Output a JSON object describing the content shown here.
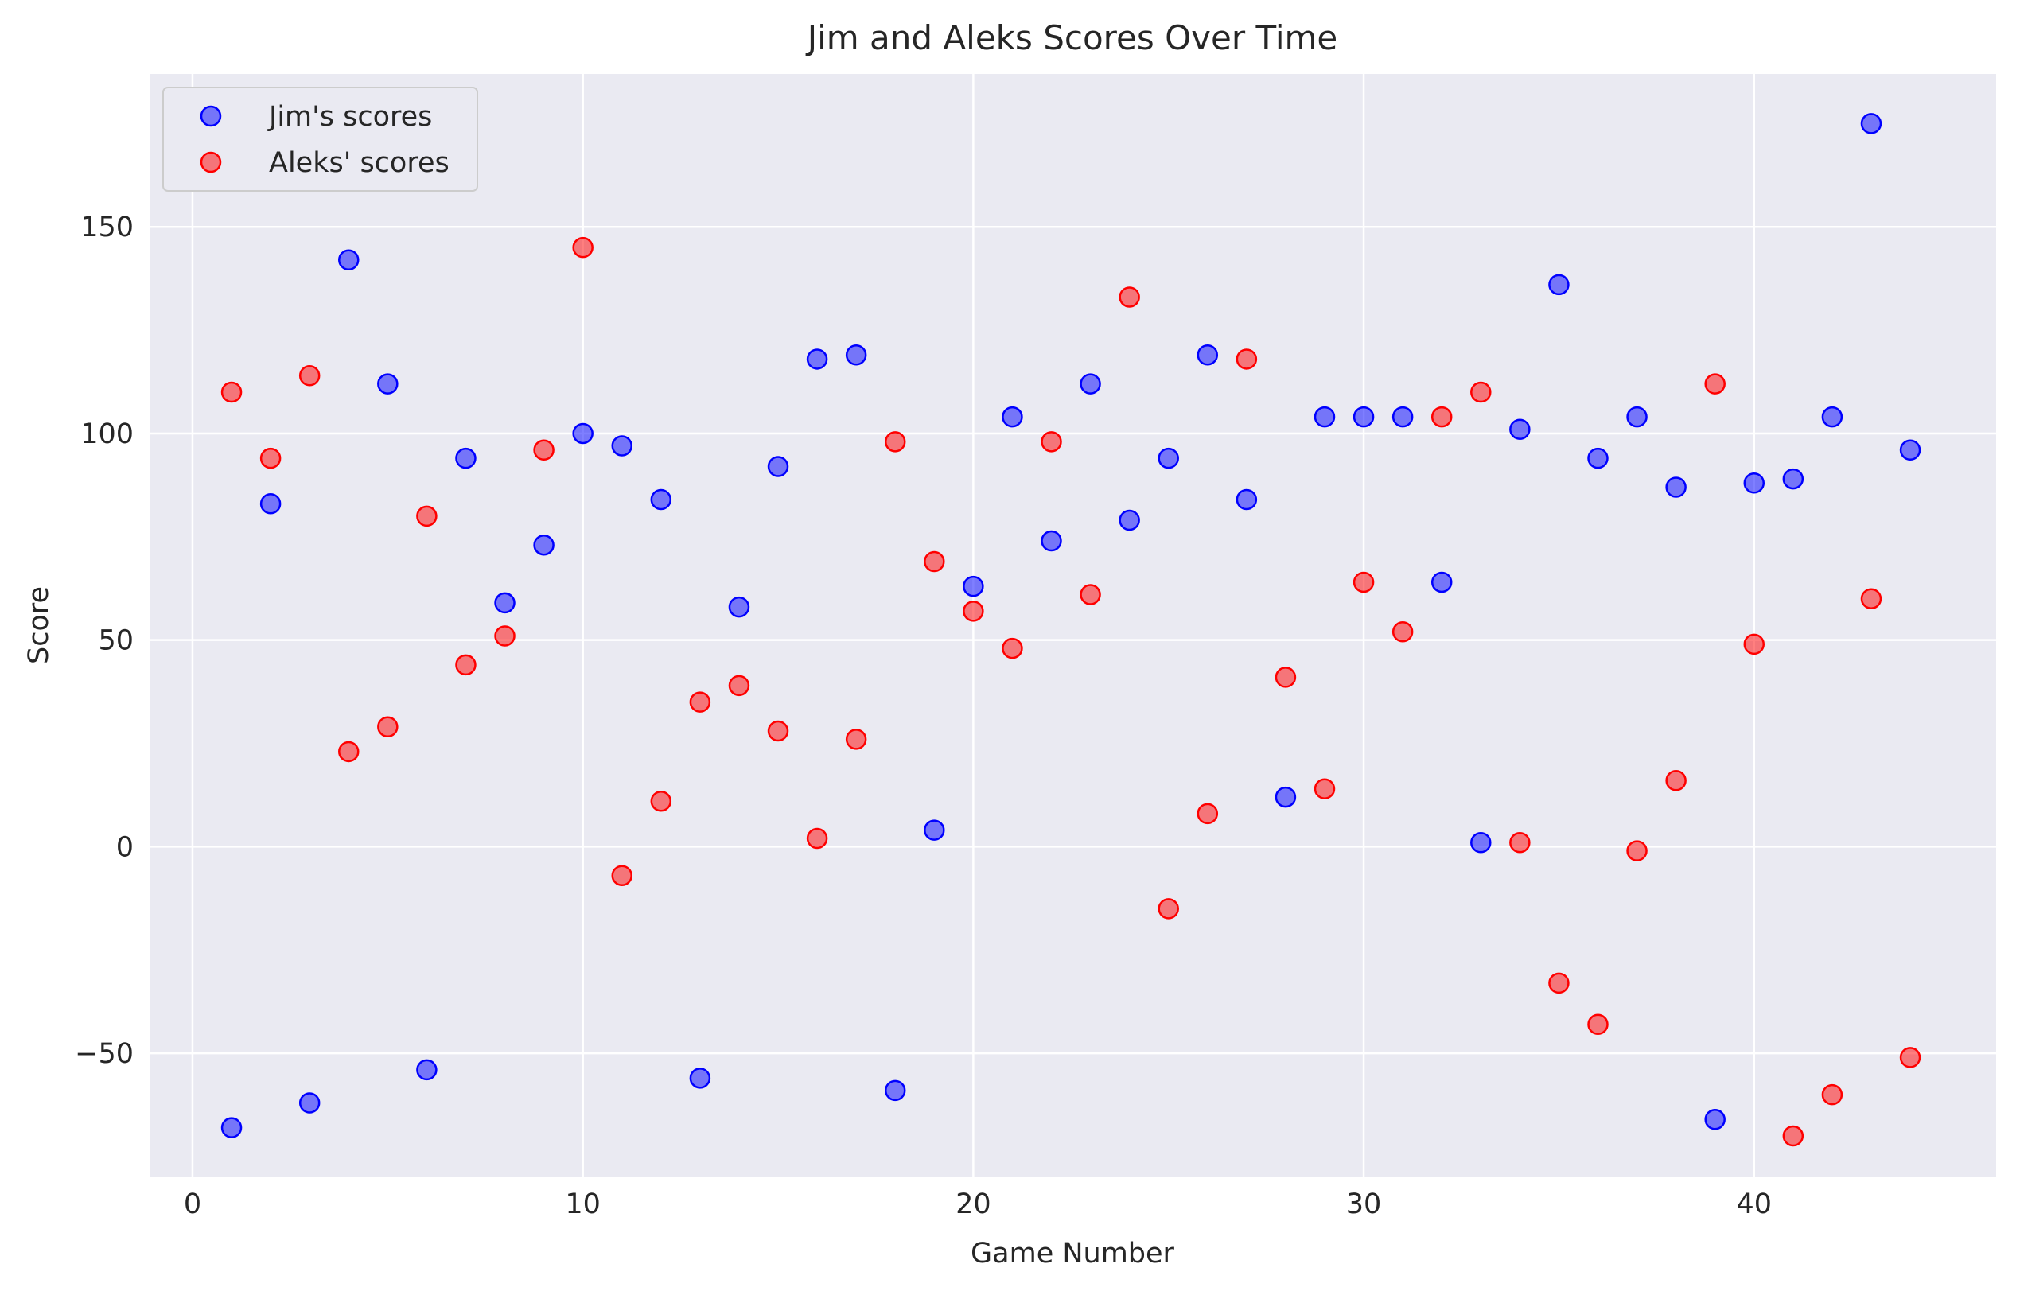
{
  "chart_data": {
    "type": "scatter",
    "title": "Jim and Aleks Scores Over Time",
    "xlabel": "Game Number",
    "ylabel": "Score",
    "xlim": [
      -1.1,
      46.2
    ],
    "ylim": [
      -80,
      187
    ],
    "xticks": [
      0,
      10,
      20,
      30,
      40
    ],
    "yticks": [
      -50,
      0,
      50,
      100,
      150
    ],
    "grid": true,
    "legend_position": "top-left",
    "background": "#eaeaf2",
    "series": [
      {
        "name": "Jim's scores",
        "color": "#0000ff",
        "x": [
          1,
          2,
          3,
          4,
          5,
          6,
          7,
          8,
          9,
          10,
          11,
          12,
          13,
          14,
          15,
          16,
          17,
          18,
          19,
          20,
          21,
          22,
          23,
          24,
          25,
          26,
          27,
          28,
          29,
          30,
          31,
          32,
          33,
          34,
          35,
          36,
          37,
          38,
          39,
          40,
          41,
          42,
          43,
          44
        ],
        "y": [
          -68,
          83,
          -62,
          142,
          112,
          -54,
          94,
          59,
          73,
          100,
          97,
          84,
          -56,
          58,
          92,
          118,
          119,
          -59,
          4,
          63,
          104,
          74,
          112,
          79,
          94,
          119,
          84,
          12,
          104,
          104,
          104,
          64,
          1,
          101,
          136,
          94,
          104,
          87,
          -66,
          88,
          89,
          104,
          175,
          96
        ]
      },
      {
        "name": "Aleks' scores",
        "color": "#ff0000",
        "x": [
          1,
          2,
          3,
          4,
          5,
          6,
          7,
          8,
          9,
          10,
          11,
          12,
          13,
          14,
          15,
          16,
          17,
          18,
          19,
          20,
          21,
          22,
          23,
          24,
          25,
          26,
          27,
          28,
          29,
          30,
          31,
          32,
          33,
          34,
          35,
          36,
          37,
          38,
          39,
          40,
          41,
          42,
          43,
          44
        ],
        "y": [
          110,
          94,
          114,
          23,
          29,
          80,
          44,
          51,
          96,
          145,
          -7,
          11,
          35,
          39,
          28,
          2,
          26,
          98,
          69,
          57,
          48,
          98,
          61,
          133,
          -15,
          8,
          118,
          41,
          14,
          64,
          52,
          104,
          110,
          1,
          -33,
          -43,
          -1,
          16,
          112,
          49,
          -70,
          -60,
          60,
          -51
        ]
      }
    ]
  }
}
